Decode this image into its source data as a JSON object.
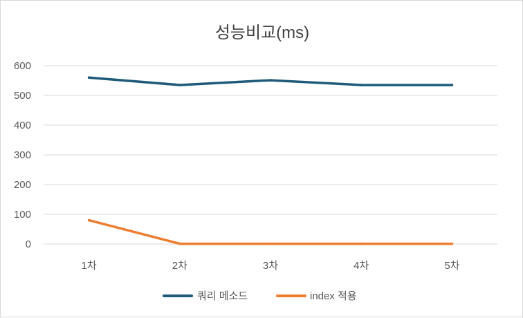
{
  "chart_data": {
    "type": "line",
    "title": "성능비교(ms)",
    "categories": [
      "1차",
      "2차",
      "3차",
      "4차",
      "5차"
    ],
    "ylim": [
      0,
      600
    ],
    "yticks": [
      0,
      100,
      200,
      300,
      400,
      500,
      600
    ],
    "grid": true,
    "legend_position": "bottom",
    "series": [
      {
        "name": "쿼리 메소드",
        "color": "#1f5a7a",
        "values": [
          560,
          535,
          551,
          535,
          535
        ]
      },
      {
        "name": "index 적용",
        "color": "#ed7d31",
        "values": [
          80,
          1,
          1,
          1,
          1
        ]
      }
    ]
  }
}
